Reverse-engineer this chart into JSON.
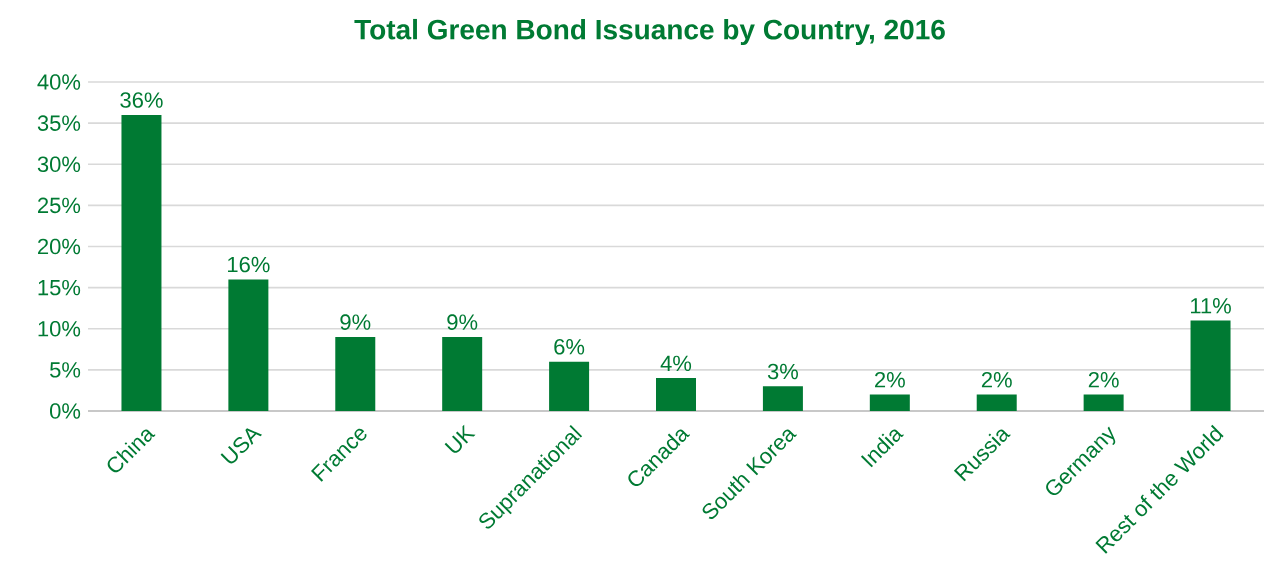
{
  "chart_data": {
    "type": "bar",
    "title": "Total Green Bond Issuance by Country, 2016",
    "categories": [
      "China",
      "USA",
      "France",
      "UK",
      "Supranational",
      "Canada",
      "South Korea",
      "India",
      "Russia",
      "Germany",
      "Rest of the World"
    ],
    "values": [
      36,
      16,
      9,
      9,
      6,
      4,
      3,
      2,
      2,
      2,
      11
    ],
    "value_labels": [
      "36%",
      "16%",
      "9%",
      "9%",
      "6%",
      "4%",
      "3%",
      "2%",
      "2%",
      "2%",
      "11%"
    ],
    "color": "#007a33",
    "ylim": [
      0,
      40
    ],
    "yticks": [
      {
        "value": 0,
        "label": "0%"
      },
      {
        "value": 5,
        "label": "5%"
      },
      {
        "value": 10,
        "label": "10%"
      },
      {
        "value": 15,
        "label": "15%"
      },
      {
        "value": 20,
        "label": "20%"
      },
      {
        "value": 25,
        "label": "25%"
      },
      {
        "value": 30,
        "label": "30%"
      },
      {
        "value": 35,
        "label": "35%"
      },
      {
        "value": 40,
        "label": "40%"
      }
    ],
    "grid": "y"
  }
}
